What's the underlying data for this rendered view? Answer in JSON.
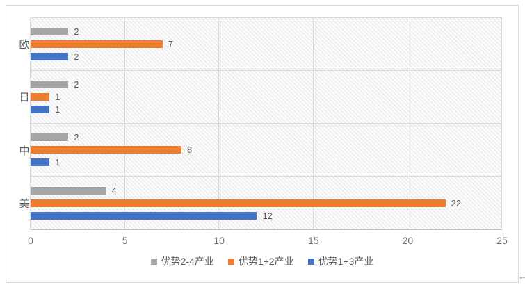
{
  "chart_data": {
    "type": "bar",
    "orientation": "horizontal",
    "title": "",
    "categories": [
      "欧",
      "日",
      "中",
      "美"
    ],
    "series": [
      {
        "name": "优势2-4产业",
        "color": "#a5a5a5",
        "values": [
          2,
          2,
          2,
          4
        ]
      },
      {
        "name": "优势1+2产业",
        "color": "#ed7d31",
        "values": [
          7,
          1,
          8,
          22
        ]
      },
      {
        "name": "优势1+3产业",
        "color": "#4472c4",
        "values": [
          2,
          1,
          1,
          12
        ]
      }
    ],
    "x_axis": {
      "min": 0,
      "max": 25,
      "ticks": [
        0,
        5,
        10,
        15,
        20,
        25
      ]
    },
    "ylabel": "",
    "xlabel": "",
    "legend_position": "bottom",
    "grid": {
      "vertical_gridlines": true,
      "category_separators": true
    },
    "plot_background": "light-diagonal-hatch",
    "data_labels": true,
    "colors": {
      "gridline": "#d9d9d9",
      "axis_line": "#bfbfbf",
      "label_text": "#595959",
      "tick_text": "#6f6f6f",
      "frame_border": "#d9d9d9"
    }
  },
  "artifacts": {
    "cursor_arrow": "←"
  }
}
